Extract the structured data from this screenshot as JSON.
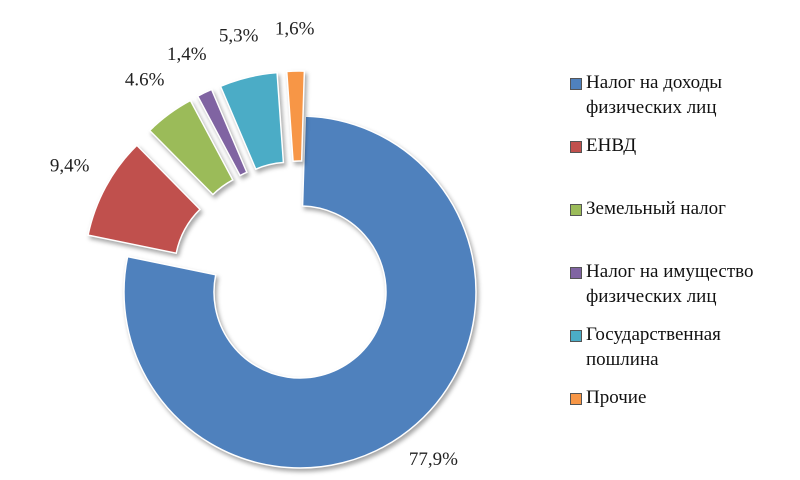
{
  "chart_data": {
    "type": "donut",
    "categories": [
      "Налог на доходы физических лиц",
      "ЕНВД",
      "Земельный налог",
      "Налог на имущество физических лиц",
      "Государственная пошлина",
      "Прочие"
    ],
    "values": [
      77.9,
      9.4,
      4.6,
      1.4,
      5.3,
      1.6
    ],
    "value_labels": [
      "77,9%",
      "9,4%",
      "4.6%",
      "1,4%",
      "5,3%",
      "1,6%"
    ],
    "colors": [
      "#4f81bd",
      "#c0504d",
      "#9bbb59",
      "#8064a2",
      "#4bacc6",
      "#f79646"
    ],
    "legend": "right"
  }
}
